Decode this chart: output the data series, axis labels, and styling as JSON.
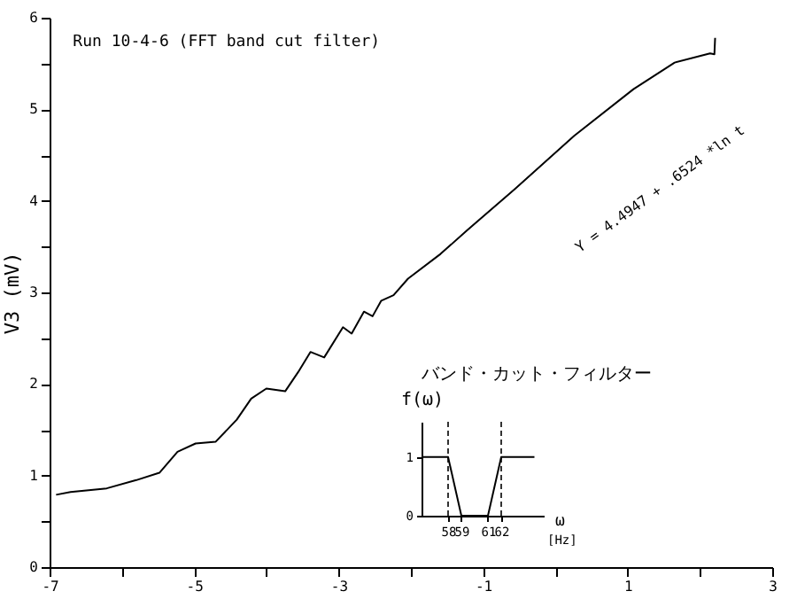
{
  "chart_data": [
    {
      "type": "line",
      "title": "Run 10-4-6  (FFT band cut filter)",
      "ylabel": "V3  (mV)",
      "x": [
        -6.91,
        -6.71,
        -6.21,
        -5.8,
        -5.48,
        -5.23,
        -4.98,
        -4.7,
        -4.41,
        -4.21,
        -4.0,
        -3.74,
        -3.56,
        -3.39,
        -3.2,
        -2.94,
        -2.82,
        -2.65,
        -2.53,
        -2.41,
        -2.24,
        -2.04,
        -1.59,
        -1.22,
        -0.56,
        0.26,
        1.08,
        1.65,
        2.14,
        2.2,
        2.21
      ],
      "series": [
        {
          "color": "#000000",
          "values": [
            0.79,
            0.82,
            0.86,
            0.95,
            1.03,
            1.26,
            1.35,
            1.37,
            1.61,
            1.84,
            1.95,
            1.92,
            2.13,
            2.35,
            2.29,
            2.62,
            2.55,
            2.79,
            2.74,
            2.91,
            2.97,
            3.15,
            3.42,
            3.68,
            4.13,
            4.71,
            5.22,
            5.51,
            5.61,
            5.6,
            5.78
          ]
        }
      ],
      "xlim": [
        -7,
        3
      ],
      "xticks": [
        -7,
        {
          "value": -6,
          "label": null
        },
        -5,
        {
          "value": -4,
          "label": null
        },
        -3,
        {
          "value": -2,
          "label": null
        },
        -1,
        {
          "value": 0,
          "label": null
        },
        1,
        {
          "value": 2,
          "label": null
        },
        3
      ],
      "ylim": [
        0,
        6
      ],
      "yticks": [
        0,
        {
          "value": 0.5,
          "label": null
        },
        1,
        {
          "value": 1.5,
          "label": null
        },
        2,
        {
          "value": 2.5,
          "label": null
        },
        3,
        {
          "value": 3.5,
          "label": null
        },
        4,
        {
          "value": 4.5,
          "label": null
        },
        5,
        {
          "value": 5.5,
          "label": null
        },
        6
      ],
      "annotations": [
        "Y = 4.4947 +  .6524 *ln t"
      ],
      "grid": false
    },
    {
      "type": "line",
      "title": "バンド・カット・フィルター",
      "xlabel": "ω",
      "ylabel": "f(ω)",
      "x": [
        56,
        58,
        59,
        61,
        62,
        64.5
      ],
      "series": [
        {
          "color": "#000000",
          "values": [
            1,
            1,
            0,
            0,
            1,
            1
          ]
        }
      ],
      "xlim": [
        56,
        65.2
      ],
      "xticks": [
        58,
        59,
        61,
        62
      ],
      "ylim": [
        0,
        1.6
      ],
      "yticks": [
        0,
        1
      ],
      "ref_lines": [
        {
          "axis": "x",
          "value": 58,
          "line_style": "dashed"
        },
        {
          "axis": "x",
          "value": 62,
          "line_style": "dashed"
        }
      ],
      "annotations": [
        "[Hz]"
      ],
      "grid": false
    }
  ]
}
